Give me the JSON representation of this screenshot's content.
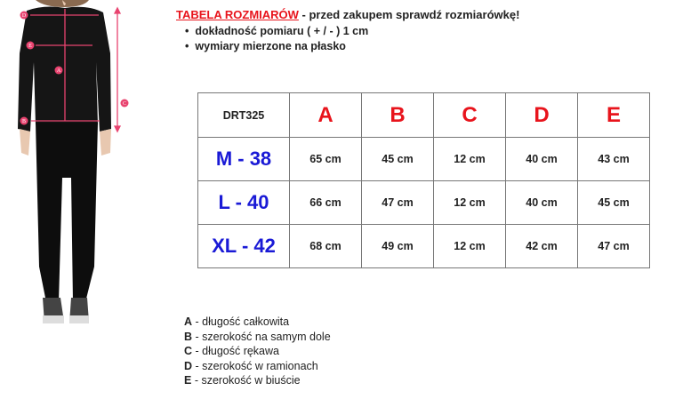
{
  "header": {
    "title": "TABELA ROZMIARÓW",
    "subtitle": " - przed zakupem sprawdź rozmiarówkę!"
  },
  "bullets": [
    "dokładność pomiaru ( + / - ) 1 cm",
    "wymiary mierzone na płasko"
  ],
  "figure": {
    "markers": [
      "A",
      "B",
      "C",
      "D",
      "E"
    ],
    "accent": "#e8436f"
  },
  "table": {
    "code": "DRT325",
    "columns": [
      "A",
      "B",
      "C",
      "D",
      "E"
    ],
    "rows": [
      {
        "size": "M - 38",
        "values": [
          "65 cm",
          "45 cm",
          "12 cm",
          "40 cm",
          "43 cm"
        ]
      },
      {
        "size": "L - 40",
        "values": [
          "66 cm",
          "47 cm",
          "12 cm",
          "40 cm",
          "45 cm"
        ]
      },
      {
        "size": "XL - 42",
        "values": [
          "68 cm",
          "49 cm",
          "12 cm",
          "42 cm",
          "47 cm"
        ]
      }
    ]
  },
  "legend": [
    {
      "key": "A",
      "text": " - długość całkowita"
    },
    {
      "key": "B",
      "text": " - szerokość na samym dole"
    },
    {
      "key": "C",
      "text": " - długość rękawa"
    },
    {
      "key": "D",
      "text": " - szerokość w ramionach"
    },
    {
      "key": "E",
      "text": " - szerokość w biuście"
    }
  ],
  "colors": {
    "red": "#e8141c",
    "blue": "#1a1ad6"
  }
}
